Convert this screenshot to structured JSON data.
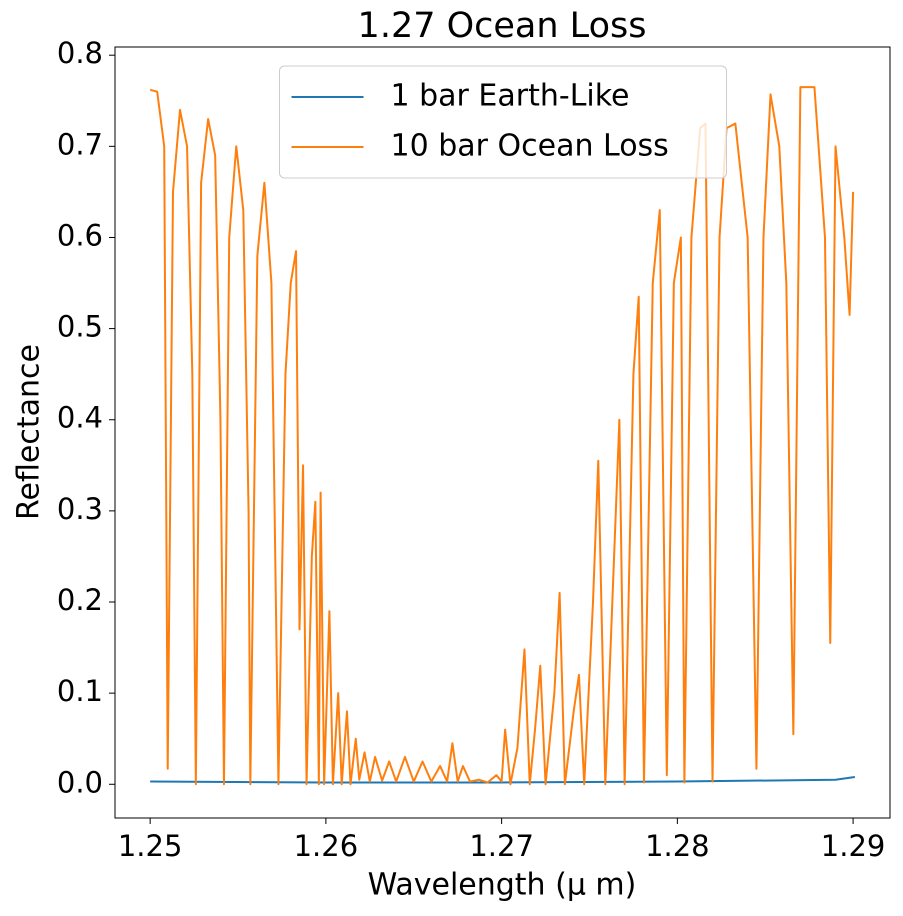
{
  "chart_data": {
    "type": "line",
    "title": "1.27 Ocean Loss",
    "x_label": "Wavelength (μ m)",
    "y_label": "Reflectance",
    "xlim": [
      1.248,
      1.2921
    ],
    "ylim": [
      -0.037,
      0.809
    ],
    "xticks": [
      1.25,
      1.26,
      1.27,
      1.28,
      1.29
    ],
    "yticks": [
      {
        "value": 0,
        "label": "0.0"
      },
      0.1,
      0.2,
      0.3,
      0.4,
      0.5,
      0.6,
      0.7,
      0.8
    ],
    "legend": "upper center",
    "grid": false,
    "series": [
      {
        "name": "1 bar Earth-Like",
        "color": "#1f77b4",
        "x": [
          1.25,
          1.26,
          1.27,
          1.28,
          1.289,
          1.2901
        ],
        "values": [
          0.003,
          0.002,
          0.002,
          0.003,
          0.005,
          0.008
        ]
      },
      {
        "name": "10 bar Ocean Loss",
        "color": "#ff7f0e",
        "x": [
          1.25,
          1.2504,
          1.2508,
          1.251,
          1.2513,
          1.2517,
          1.2521,
          1.2524,
          1.2526,
          1.2529,
          1.2533,
          1.2537,
          1.254,
          1.2542,
          1.2545,
          1.2549,
          1.2553,
          1.2556,
          1.2557,
          1.2561,
          1.2565,
          1.2569,
          1.2573,
          1.2577,
          1.258,
          1.2583,
          1.2585,
          1.2587,
          1.2589,
          1.2592,
          1.2594,
          1.2596,
          1.2597,
          1.2599,
          1.2602,
          1.2604,
          1.2607,
          1.2609,
          1.2612,
          1.2614,
          1.2617,
          1.2619,
          1.2622,
          1.2625,
          1.2628,
          1.2632,
          1.2636,
          1.264,
          1.2645,
          1.265,
          1.2655,
          1.266,
          1.2665,
          1.2669,
          1.2672,
          1.2675,
          1.2678,
          1.2682,
          1.2687,
          1.2692,
          1.2697,
          1.27,
          1.2702,
          1.2705,
          1.2709,
          1.2713,
          1.2716,
          1.2719,
          1.2722,
          1.2725,
          1.273,
          1.2733,
          1.2736,
          1.2741,
          1.2744,
          1.2747,
          1.2752,
          1.2755,
          1.2759,
          1.2764,
          1.2767,
          1.277,
          1.2775,
          1.2778,
          1.2781,
          1.2786,
          1.279,
          1.2794,
          1.2798,
          1.2802,
          1.2804,
          1.2808,
          1.2813,
          1.2816,
          1.282,
          1.2824,
          1.2828,
          1.2833,
          1.284,
          1.2845,
          1.2849,
          1.2853,
          1.2858,
          1.2862,
          1.2866,
          1.287,
          1.2878,
          1.2884,
          1.2887,
          1.289,
          1.2895,
          1.2898,
          1.29
        ],
        "values": [
          0.762,
          0.76,
          0.7,
          0.017,
          0.65,
          0.74,
          0.7,
          0.45,
          0.0,
          0.66,
          0.73,
          0.69,
          0.4,
          0.0,
          0.6,
          0.7,
          0.63,
          0.3,
          0.0,
          0.58,
          0.66,
          0.55,
          0.0,
          0.45,
          0.55,
          0.585,
          0.17,
          0.35,
          0.0,
          0.25,
          0.31,
          0.0,
          0.32,
          0.0,
          0.19,
          0.0,
          0.1,
          0.0,
          0.08,
          0.0,
          0.05,
          0.005,
          0.035,
          0.003,
          0.03,
          0.004,
          0.025,
          0.003,
          0.03,
          0.003,
          0.025,
          0.003,
          0.02,
          0.003,
          0.045,
          0.003,
          0.02,
          0.003,
          0.005,
          0.002,
          0.01,
          0.003,
          0.06,
          0.0,
          0.04,
          0.148,
          0.0,
          0.06,
          0.13,
          0.0,
          0.1,
          0.21,
          0.0,
          0.08,
          0.12,
          0.0,
          0.2,
          0.355,
          0.0,
          0.25,
          0.4,
          0.0,
          0.45,
          0.535,
          0.002,
          0.55,
          0.63,
          0.01,
          0.55,
          0.6,
          0.002,
          0.6,
          0.72,
          0.725,
          0.003,
          0.6,
          0.72,
          0.725,
          0.6,
          0.017,
          0.6,
          0.757,
          0.7,
          0.55,
          0.055,
          0.765,
          0.765,
          0.6,
          0.155,
          0.7,
          0.6,
          0.515,
          0.65
        ]
      }
    ]
  }
}
